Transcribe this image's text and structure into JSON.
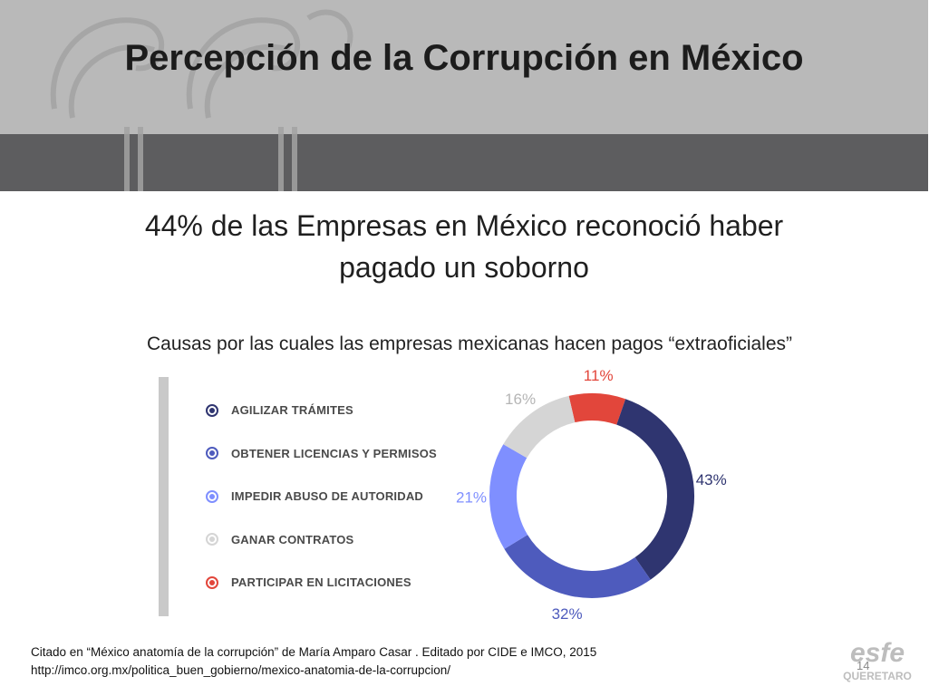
{
  "slide": {
    "title": "Percepción de la Corrupción en México",
    "headline_line1": "44% de las Empresas en México reconoció haber",
    "headline_line2": "pagado un soborno",
    "subtitle": "Causas por las cuales las empresas mexicanas hacen pagos “extraoficiales”",
    "footer_line1": "Citado en “México anatomía de la corrupción” de  María  Amparo Casar . Editado por CIDE e IMCO, 2015",
    "footer_line2": "http://imco.org.mx/politica_buen_gobierno/mexico-anatomia-de-la-corrupcion/",
    "page_number": "14",
    "logo_text": "esfe",
    "logo_subtext": "QUERETARO"
  },
  "chart_data": {
    "type": "pie",
    "variant": "donut",
    "legend_position": "left",
    "categories": [
      "AGILIZAR TRÁMITES",
      "OBTENER LICENCIAS Y PERMISOS",
      "IMPEDIR ABUSO DE AUTORIDAD",
      "GANAR CONTRATOS",
      "PARTICIPAR EN LICITACIONES"
    ],
    "values": [
      43,
      32,
      21,
      16,
      11
    ],
    "labels": [
      "43%",
      "32%",
      "21%",
      "16%",
      "11%"
    ],
    "colors": [
      "#2f3570",
      "#4e5bbd",
      "#7f8fff",
      "#d5d5d5",
      "#e2463b"
    ]
  }
}
